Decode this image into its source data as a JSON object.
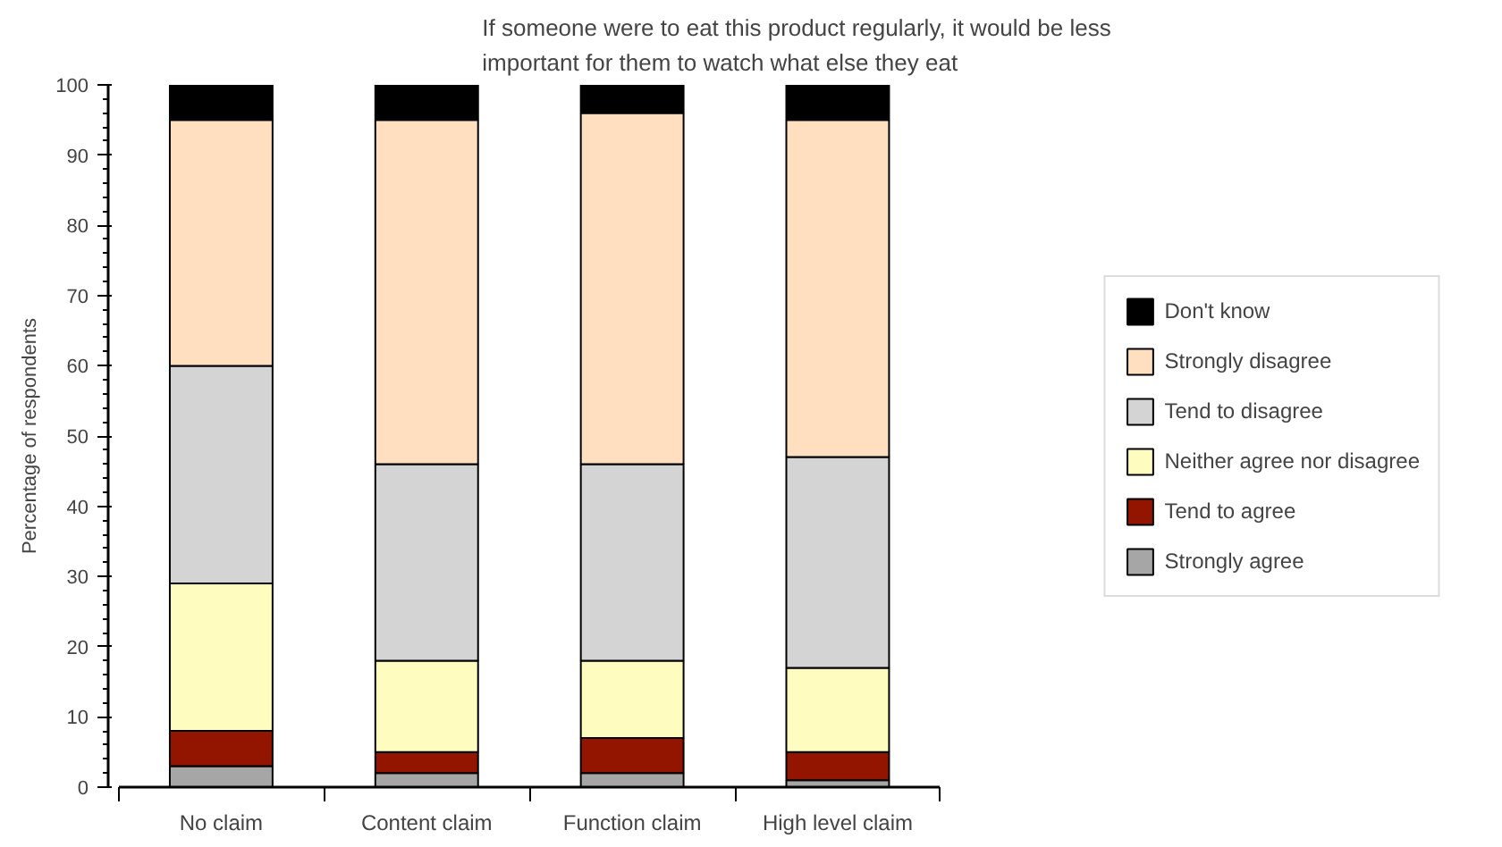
{
  "chart_data": {
    "type": "bar",
    "stacked": true,
    "title": "If someone were to eat this product regularly, it would be less important for them to watch what else they eat",
    "ylabel": "Percentage of respondents",
    "categories": [
      "No claim",
      "Content claim",
      "Function claim",
      "High level claim"
    ],
    "series": [
      {
        "name": "Strongly agree",
        "color": "#a6a6a6",
        "values": [
          3,
          2,
          2,
          1
        ]
      },
      {
        "name": "Tend to agree",
        "color": "#931500",
        "values": [
          5,
          3,
          5,
          4
        ]
      },
      {
        "name": "Neither agree nor disagree",
        "color": "#fffcc0",
        "values": [
          21,
          13,
          11,
          12
        ]
      },
      {
        "name": "Tend to disagree",
        "color": "#d4d4d4",
        "values": [
          31,
          28,
          28,
          30
        ]
      },
      {
        "name": "Strongly disagree",
        "color": "#ffdfbf",
        "values": [
          35,
          49,
          50,
          48
        ]
      },
      {
        "name": "Don't know",
        "color": "#000000",
        "values": [
          5,
          5,
          4,
          5
        ]
      }
    ],
    "ylim": [
      0,
      100
    ],
    "yticks": [
      0,
      10,
      20,
      30,
      40,
      50,
      60,
      70,
      80,
      90,
      100
    ],
    "grid": false,
    "legend": "right"
  }
}
